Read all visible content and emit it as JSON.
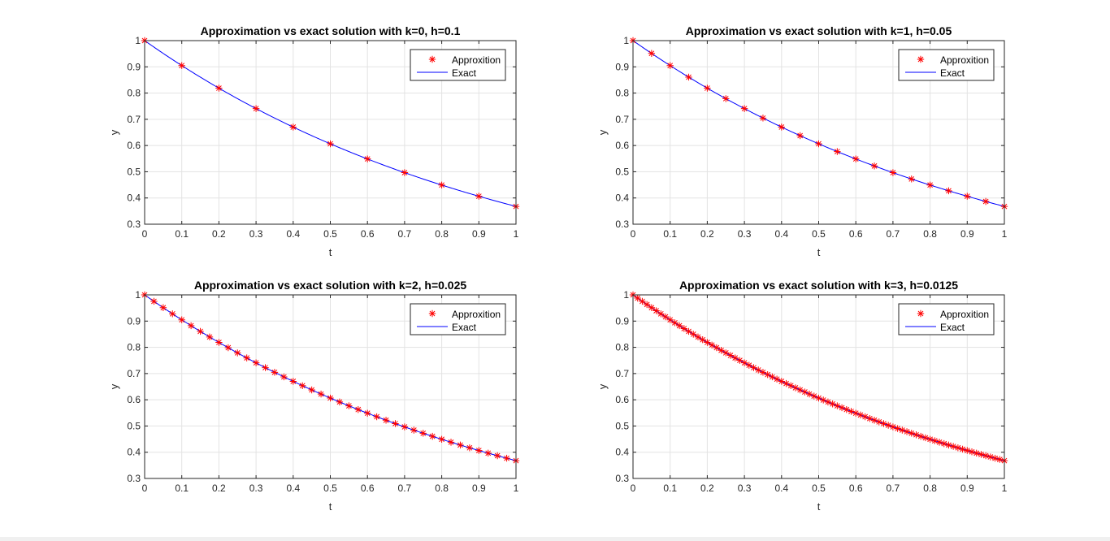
{
  "chart_data": [
    {
      "type": "line",
      "title": "Approximation vs exact solution with k=0, h=0.1",
      "xlabel": "t",
      "ylabel": "y",
      "xlim": [
        0,
        1
      ],
      "ylim": [
        0.3,
        1
      ],
      "xticks": [
        "0",
        "0.1",
        "0.2",
        "0.3",
        "0.4",
        "0.5",
        "0.6",
        "0.7",
        "0.8",
        "0.9",
        "1"
      ],
      "yticks": [
        "0.3",
        "0.4",
        "0.5",
        "0.6",
        "0.7",
        "0.8",
        "0.9",
        "1"
      ],
      "grid": true,
      "legend_position": "top-right",
      "step": 0.1,
      "series": [
        {
          "name": "Approxition",
          "style": "markers",
          "marker": "*",
          "color": "#ff0000"
        },
        {
          "name": "Exact",
          "style": "line",
          "color": "#0000ff"
        }
      ]
    },
    {
      "type": "line",
      "title": "Approximation vs exact solution with k=1, h=0.05",
      "xlabel": "t",
      "ylabel": "y",
      "xlim": [
        0,
        1
      ],
      "ylim": [
        0.3,
        1
      ],
      "xticks": [
        "0",
        "0.1",
        "0.2",
        "0.3",
        "0.4",
        "0.5",
        "0.6",
        "0.7",
        "0.8",
        "0.9",
        "1"
      ],
      "yticks": [
        "0.3",
        "0.4",
        "0.5",
        "0.6",
        "0.7",
        "0.8",
        "0.9",
        "1"
      ],
      "grid": true,
      "legend_position": "top-right",
      "step": 0.05,
      "series": [
        {
          "name": "Approxition",
          "style": "markers",
          "marker": "*",
          "color": "#ff0000"
        },
        {
          "name": "Exact",
          "style": "line",
          "color": "#0000ff"
        }
      ]
    },
    {
      "type": "line",
      "title": "Approximation vs exact solution with k=2, h=0.025",
      "xlabel": "t",
      "ylabel": "y",
      "xlim": [
        0,
        1
      ],
      "ylim": [
        0.3,
        1
      ],
      "xticks": [
        "0",
        "0.1",
        "0.2",
        "0.3",
        "0.4",
        "0.5",
        "0.6",
        "0.7",
        "0.8",
        "0.9",
        "1"
      ],
      "yticks": [
        "0.3",
        "0.4",
        "0.5",
        "0.6",
        "0.7",
        "0.8",
        "0.9",
        "1"
      ],
      "grid": true,
      "legend_position": "top-right",
      "step": 0.025,
      "series": [
        {
          "name": "Approxition",
          "style": "markers",
          "marker": "*",
          "color": "#ff0000"
        },
        {
          "name": "Exact",
          "style": "line",
          "color": "#0000ff"
        }
      ]
    },
    {
      "type": "line",
      "title": "Approximation vs exact solution with k=3, h=0.0125",
      "xlabel": "t",
      "ylabel": "y",
      "xlim": [
        0,
        1
      ],
      "ylim": [
        0.3,
        1
      ],
      "xticks": [
        "0",
        "0.1",
        "0.2",
        "0.3",
        "0.4",
        "0.5",
        "0.6",
        "0.7",
        "0.8",
        "0.9",
        "1"
      ],
      "yticks": [
        "0.3",
        "0.4",
        "0.5",
        "0.6",
        "0.7",
        "0.8",
        "0.9",
        "1"
      ],
      "grid": true,
      "legend_position": "top-right",
      "step": 0.0125,
      "series": [
        {
          "name": "Approxition",
          "style": "markers",
          "marker": "*",
          "color": "#ff0000"
        },
        {
          "name": "Exact",
          "style": "line",
          "color": "#0000ff"
        }
      ]
    }
  ]
}
